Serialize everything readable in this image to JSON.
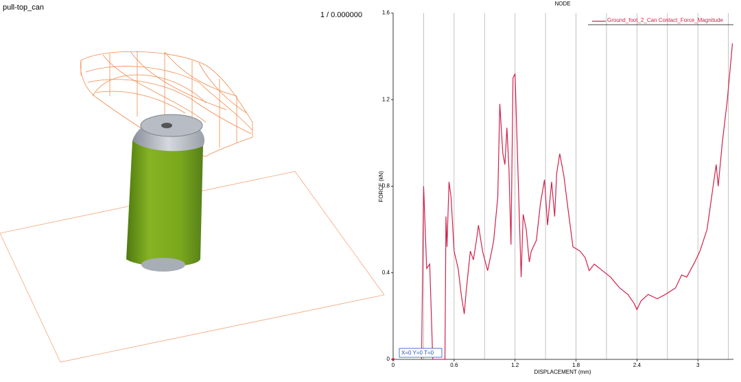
{
  "viewport": {
    "title": "pull-top_can",
    "frame": "1 / 0.000000"
  },
  "chart_data": {
    "type": "line",
    "title": "NODE",
    "x_label": "DISPLACEMENT (mm)",
    "y_label": "FORCE (kN)",
    "annotation": "X=0 Y=0 T=0",
    "x": [
      0.28,
      0.3,
      0.33,
      0.36,
      0.39,
      0.51,
      0.52,
      0.53,
      0.55,
      0.57,
      0.6,
      0.64,
      0.67,
      0.7,
      0.72,
      0.76,
      0.79,
      0.82,
      0.84,
      0.88,
      0.93,
      0.97,
      0.99,
      1.03,
      1.05,
      1.08,
      1.1,
      1.12,
      1.14,
      1.16,
      1.18,
      1.2,
      1.26,
      1.28,
      1.31,
      1.34,
      1.36,
      1.41,
      1.45,
      1.49,
      1.52,
      1.56,
      1.59,
      1.61,
      1.64,
      1.68,
      1.72,
      1.77,
      1.84,
      1.89,
      1.93,
      1.98,
      2.06,
      2.14,
      2.23,
      2.31,
      2.37,
      2.4,
      2.44,
      2.51,
      2.6,
      2.68,
      2.78,
      2.84,
      2.89,
      2.97,
      3.02,
      3.09,
      3.12,
      3.18,
      3.2,
      3.24,
      3.29,
      3.34
    ],
    "series": [
      {
        "name": "Ground_foot_2_Can Contact_Force_Magnitude",
        "color": "#d0204a",
        "values": [
          0,
          0.8,
          0.42,
          0.44,
          0,
          0,
          0.66,
          0.52,
          0.82,
          0.75,
          0.5,
          0.42,
          0.3,
          0.21,
          0.32,
          0.5,
          0.46,
          0.55,
          0.62,
          0.5,
          0.41,
          0.5,
          0.55,
          0.75,
          1.18,
          0.95,
          0.9,
          1.07,
          0.88,
          0.53,
          1.3,
          1.32,
          0.38,
          0.67,
          0.6,
          0.45,
          0.5,
          0.55,
          0.72,
          0.83,
          0.62,
          0.82,
          0.66,
          0.86,
          0.95,
          0.85,
          0.7,
          0.52,
          0.5,
          0.47,
          0.41,
          0.44,
          0.41,
          0.38,
          0.33,
          0.3,
          0.26,
          0.23,
          0.27,
          0.3,
          0.28,
          0.3,
          0.33,
          0.39,
          0.38,
          0.45,
          0.5,
          0.6,
          0.7,
          0.9,
          0.8,
          1.0,
          1.2,
          1.46
        ]
      }
    ],
    "xlim": [
      0,
      3.35
    ],
    "ylim": [
      0,
      1.6
    ],
    "xticks": [
      0,
      0.6,
      1.2,
      1.8,
      2.4,
      3
    ],
    "yticks": [
      0,
      0.4,
      0.8,
      1.2,
      1.6
    ],
    "xgrid": [
      0.3,
      0.6,
      0.9,
      1.2,
      1.5,
      1.8,
      2.1,
      2.4,
      2.7,
      3,
      3.3
    ],
    "legend": "top-right"
  }
}
